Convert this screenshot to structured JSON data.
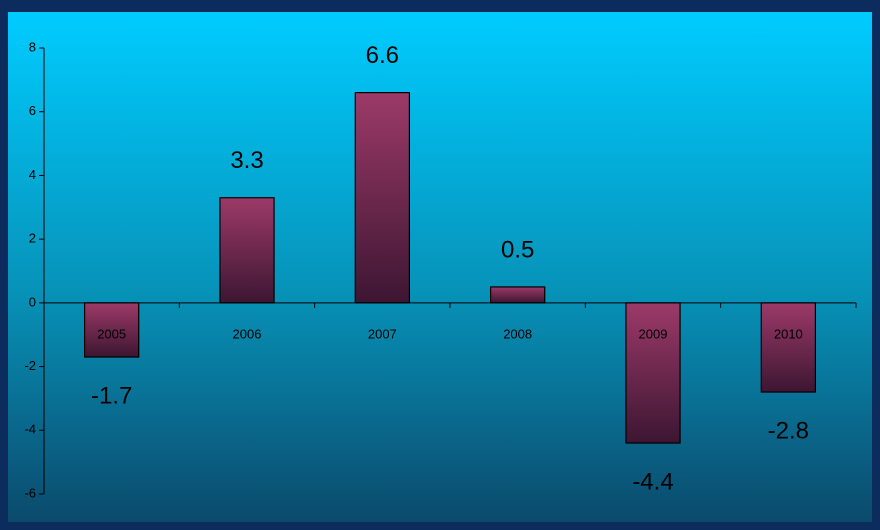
{
  "chart_data": {
    "type": "bar",
    "categories": [
      "2005",
      "2006",
      "2007",
      "2008",
      "2009",
      "2010"
    ],
    "values": [
      -1.7,
      3.3,
      6.6,
      0.5,
      -4.4,
      -2.8
    ],
    "color": "#8e3460",
    "ylim": [
      -6,
      8
    ],
    "yticks": [
      -6,
      -4,
      -2,
      0,
      2,
      4,
      6,
      8
    ]
  }
}
